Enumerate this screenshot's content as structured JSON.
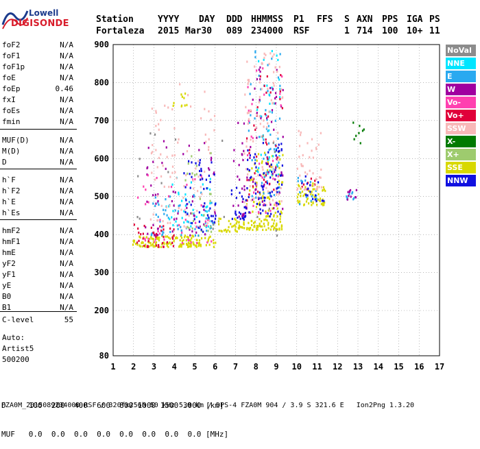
{
  "logo": {
    "line1": "Lowell",
    "line2": "DIGISONDE"
  },
  "header": {
    "labels": [
      "Station",
      "YYYY",
      "DAY",
      "DDD",
      "HHMMSS",
      "P1",
      "FFS",
      "S",
      "AXN",
      "PPS",
      "IGA",
      "PS"
    ],
    "values": [
      "Fortaleza",
      "2015",
      "Mar30",
      "089",
      "234000",
      "RSF",
      "",
      "1",
      "714",
      "100",
      "10+",
      "11"
    ]
  },
  "params": [
    {
      "name": "foF2",
      "value": "N/A"
    },
    {
      "name": "foF1",
      "value": "N/A"
    },
    {
      "name": "foF1p",
      "value": "N/A"
    },
    {
      "name": "foE",
      "value": "N/A"
    },
    {
      "name": "foEp",
      "value": "0.46"
    },
    {
      "name": "fxI",
      "value": "N/A"
    },
    {
      "name": "foEs",
      "value": "N/A"
    },
    {
      "name": "fmin",
      "value": "N/A"
    },
    {
      "name": "MUF(D)",
      "value": "N/A"
    },
    {
      "name": "M(D)",
      "value": "N/A"
    },
    {
      "name": "D",
      "value": "N/A"
    },
    {
      "name": "h`F",
      "value": "N/A"
    },
    {
      "name": "h`F2",
      "value": "N/A"
    },
    {
      "name": "h`E",
      "value": "N/A"
    },
    {
      "name": "h`Es",
      "value": "N/A"
    },
    {
      "name": "hmF2",
      "value": "N/A"
    },
    {
      "name": "hmF1",
      "value": "N/A"
    },
    {
      "name": "hmE",
      "value": "N/A"
    },
    {
      "name": "yF2",
      "value": "N/A"
    },
    {
      "name": "yF1",
      "value": "N/A"
    },
    {
      "name": "yE",
      "value": "N/A"
    },
    {
      "name": "B0",
      "value": "N/A"
    },
    {
      "name": "B1",
      "value": "N/A"
    },
    {
      "name": "C-level",
      "value": "55"
    }
  ],
  "auto": {
    "line1": "Auto:",
    "line2": "Artist5",
    "line3": "500200"
  },
  "legend": [
    {
      "label": "NoVal",
      "color": "#8c8c8c"
    },
    {
      "label": "NNE",
      "color": "#00e5ff"
    },
    {
      "label": "E",
      "color": "#2aa9f0"
    },
    {
      "label": "W",
      "color": "#a000a0"
    },
    {
      "label": "Vo-",
      "color": "#ff40b0"
    },
    {
      "label": "Vo+",
      "color": "#e0003a"
    },
    {
      "label": "SSW",
      "color": "#f8b8b8"
    },
    {
      "label": "X-",
      "color": "#007a00"
    },
    {
      "label": "X+",
      "color": "#9ecb6e"
    },
    {
      "label": "SSE",
      "color": "#d8d800"
    },
    {
      "label": "NNW",
      "color": "#1010e0"
    }
  ],
  "bottom": {
    "d_line": "D     100  200  400  600  800 1000 1500 3000 [km]",
    "muf_line": "MUF   0.0  0.0  0.0  0.0  0.0  0.0  0.0  0.0 [MHz]"
  },
  "footer": "FZA0M_2015089234000.RSF / 320fx256h 50 kHz 5.0 km / DPS-4 FZA0M 904 / 3.9 S 321.6 E   Ion2Png 1.3.20",
  "chart_data": {
    "type": "scatter",
    "x_ticks": [
      "1",
      "2",
      "3",
      "4",
      "5",
      "6",
      "7",
      "8",
      "9",
      "10",
      "11",
      "12",
      "13",
      "14",
      "15",
      "16",
      "17"
    ],
    "y_ticks": [
      "80",
      "200",
      "300",
      "400",
      "500",
      "600",
      "700",
      "800",
      "900"
    ],
    "xlim": [
      1,
      17
    ],
    "ylim": [
      80,
      900
    ],
    "grid": true,
    "legend_position": "right",
    "series": [
      {
        "name": "SSE",
        "color": "#d8d800",
        "clusters": [
          {
            "x": [
              1.9,
              6.0
            ],
            "y": [
              370,
              400
            ],
            "n": 140
          },
          {
            "x": [
              6.1,
              7.4
            ],
            "y": [
              410,
              445
            ],
            "n": 40
          },
          {
            "x": [
              7.5,
              9.3
            ],
            "y": [
              415,
              445
            ],
            "n": 60
          },
          {
            "x": [
              7.5,
              9.3
            ],
            "y": [
              450,
              620
            ],
            "n": 80
          },
          {
            "x": [
              10.0,
              11.4
            ],
            "y": [
              480,
              540
            ],
            "n": 60
          },
          {
            "x": [
              3.9,
              4.7
            ],
            "y": [
              740,
              780
            ],
            "n": 10
          }
        ]
      },
      {
        "name": "E",
        "color": "#2aa9f0",
        "clusters": [
          {
            "x": [
              2.8,
              6.0
            ],
            "y": [
              400,
              520
            ],
            "n": 60
          },
          {
            "x": [
              7.6,
              9.2
            ],
            "y": [
              500,
              900
            ],
            "n": 60
          },
          {
            "x": [
              10.0,
              11.0
            ],
            "y": [
              480,
              560
            ],
            "n": 15
          },
          {
            "x": [
              12.4,
              12.9
            ],
            "y": [
              495,
              515
            ],
            "n": 8
          }
        ]
      },
      {
        "name": "NNE",
        "color": "#00e5ff",
        "clusters": [
          {
            "x": [
              3.5,
              5.8
            ],
            "y": [
              420,
              560
            ],
            "n": 40
          },
          {
            "x": [
              8.0,
              9.2
            ],
            "y": [
              560,
              900
            ],
            "n": 40
          }
        ]
      },
      {
        "name": "W",
        "color": "#a000a0",
        "clusters": [
          {
            "x": [
              2.5,
              6.0
            ],
            "y": [
              400,
              650
            ],
            "n": 60
          },
          {
            "x": [
              6.8,
              7.5
            ],
            "y": [
              450,
              740
            ],
            "n": 25
          },
          {
            "x": [
              7.5,
              9.3
            ],
            "y": [
              470,
              890
            ],
            "n": 60
          },
          {
            "x": [
              12.4,
              12.9
            ],
            "y": [
              495,
              525
            ],
            "n": 10
          }
        ]
      },
      {
        "name": "Vo-",
        "color": "#ff40b0",
        "clusters": [
          {
            "x": [
              2.0,
              6.0
            ],
            "y": [
              380,
              560
            ],
            "n": 40
          },
          {
            "x": [
              7.5,
              9.3
            ],
            "y": [
              460,
              860
            ],
            "n": 30
          }
        ]
      },
      {
        "name": "Vo+",
        "color": "#e0003a",
        "clusters": [
          {
            "x": [
              1.9,
              4.0
            ],
            "y": [
              370,
              430
            ],
            "n": 40
          },
          {
            "x": [
              7.5,
              9.3
            ],
            "y": [
              480,
              850
            ],
            "n": 40
          },
          {
            "x": [
              10.1,
              11.0
            ],
            "y": [
              520,
              560
            ],
            "n": 8
          }
        ]
      },
      {
        "name": "SSW",
        "color": "#f8b8b8",
        "clusters": [
          {
            "x": [
              2.8,
              6.0
            ],
            "y": [
              420,
              800
            ],
            "n": 90
          },
          {
            "x": [
              7.4,
              9.3
            ],
            "y": [
              480,
              880
            ],
            "n": 90
          },
          {
            "x": [
              9.9,
              11.2
            ],
            "y": [
              520,
              680
            ],
            "n": 40
          }
        ]
      },
      {
        "name": "X-",
        "color": "#007a00",
        "clusters": [
          {
            "x": [
              12.4,
              13.3
            ],
            "y": [
              640,
              700
            ],
            "n": 8
          }
        ]
      },
      {
        "name": "X+",
        "color": "#9ecb6e",
        "clusters": [
          {
            "x": [
              4.5,
              5.8
            ],
            "y": [
              410,
              620
            ],
            "n": 25
          }
        ]
      },
      {
        "name": "NNW",
        "color": "#1010e0",
        "clusters": [
          {
            "x": [
              4.4,
              6.0
            ],
            "y": [
              410,
              600
            ],
            "n": 50
          },
          {
            "x": [
              6.7,
              7.5
            ],
            "y": [
              440,
              560
            ],
            "n": 25
          },
          {
            "x": [
              7.5,
              9.3
            ],
            "y": [
              450,
              650
            ],
            "n": 70
          },
          {
            "x": [
              10.0,
              11.3
            ],
            "y": [
              490,
              560
            ],
            "n": 15
          }
        ]
      },
      {
        "name": "NoVal",
        "color": "#8c8c8c",
        "clusters": [
          {
            "x": [
              2.0,
              9.2
            ],
            "y": [
              400,
              700
            ],
            "n": 20
          }
        ]
      }
    ]
  }
}
